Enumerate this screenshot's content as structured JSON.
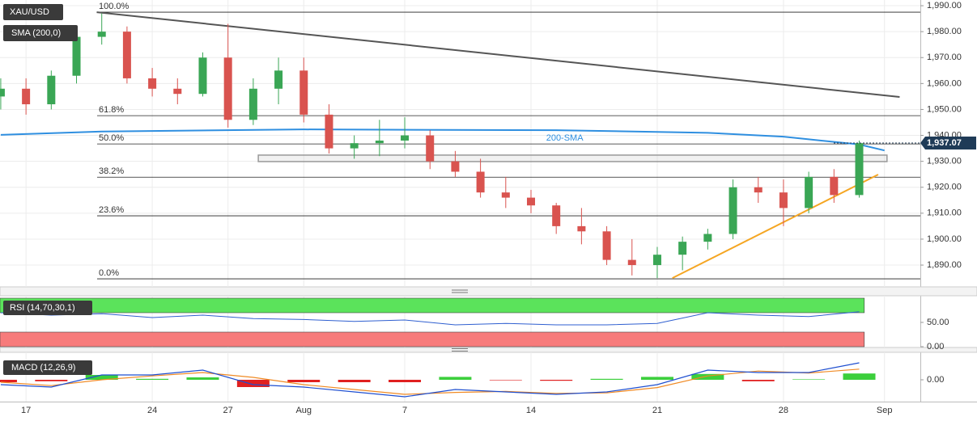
{
  "chart_data": [
    {
      "type": "candlestick",
      "title": "XAU/USD",
      "indicator": "SMA (200,0)",
      "x": [
        -1,
        0,
        1,
        2,
        3,
        4,
        5,
        6,
        7,
        8,
        9,
        10,
        11,
        12,
        13,
        14,
        15,
        16,
        17,
        18,
        19,
        20,
        21,
        22,
        23,
        24,
        25,
        26,
        27,
        28,
        29,
        30,
        31,
        32,
        33
      ],
      "open": [
        1955,
        1958,
        1952,
        1963,
        1978,
        1980,
        1962,
        1958,
        1956,
        1970,
        1946,
        1958,
        1965,
        1948,
        1935,
        1937,
        1938,
        1940,
        1930,
        1926,
        1918,
        1916,
        1913,
        1905,
        1903,
        1892,
        1890,
        1894,
        1899,
        1902,
        1920,
        1918,
        1912,
        1924,
        1917
      ],
      "high": [
        1962,
        1962,
        1965,
        1980,
        1987,
        1982,
        1966,
        1962,
        1972,
        1983,
        1962,
        1970,
        1970,
        1952,
        1940,
        1946,
        1947,
        1942,
        1934,
        1931,
        1924,
        1919,
        1914,
        1912,
        1905,
        1900,
        1897,
        1901,
        1904,
        1923,
        1924,
        1923,
        1926,
        1927,
        1938
      ],
      "low": [
        1950,
        1948,
        1950,
        1960,
        1975,
        1960,
        1955,
        1952,
        1955,
        1943,
        1944,
        1952,
        1945,
        1933,
        1931,
        1932,
        1935,
        1927,
        1924,
        1916,
        1912,
        1910,
        1902,
        1898,
        1890,
        1886,
        1885,
        1888,
        1896,
        1900,
        1914,
        1905,
        1910,
        1914,
        1916
      ],
      "close": [
        1958,
        1952,
        1963,
        1978,
        1980,
        1962,
        1958,
        1956,
        1970,
        1946,
        1958,
        1965,
        1948,
        1935,
        1937,
        1938,
        1940,
        1930,
        1926,
        1918,
        1916,
        1913,
        1905,
        1903,
        1892,
        1890,
        1894,
        1899,
        1902,
        1920,
        1918,
        1912,
        1924,
        1917,
        1937
      ],
      "up_color": "#3aa655",
      "down_color": "#d9534f",
      "xlim": [
        -1.03,
        35.42
      ],
      "ylim": [
        1881.6,
        1992.2
      ],
      "xticks": [
        {
          "value": 0,
          "label": "17"
        },
        {
          "value": 5,
          "label": "24"
        },
        {
          "value": 8,
          "label": "27"
        },
        {
          "value": 11,
          "label": "Aug"
        },
        {
          "value": 15,
          "label": "7"
        },
        {
          "value": 20,
          "label": "14"
        },
        {
          "value": 25,
          "label": "21"
        },
        {
          "value": 30,
          "label": "28"
        },
        {
          "value": 34,
          "label": "Sep"
        }
      ],
      "yticks": [
        {
          "value": 1890,
          "label": "1,890.00"
        },
        {
          "value": 1900,
          "label": "1,900.00"
        },
        {
          "value": 1910,
          "label": "1,910.00"
        },
        {
          "value": 1920,
          "label": "1,920.00"
        },
        {
          "value": 1930,
          "label": "1,930.00"
        },
        {
          "value": 1940,
          "label": "1,940.00"
        },
        {
          "value": 1950,
          "label": "1,950.00"
        },
        {
          "value": 1960,
          "label": "1,960.00"
        },
        {
          "value": 1970,
          "label": "1,970.00"
        },
        {
          "value": 1980,
          "label": "1,980.00"
        },
        {
          "value": 1990,
          "label": "1,990.00"
        }
      ],
      "grid": true,
      "sma": {
        "name": "200-SMA",
        "color": "#2f8fe0",
        "x": [
          -1,
          3,
          11,
          21,
          27,
          30,
          33,
          34
        ],
        "values": [
          1940.2,
          1941.5,
          1942.3,
          1942,
          1941,
          1939.5,
          1936.5,
          1934.2
        ]
      },
      "fib_levels": [
        {
          "value": 1987.5,
          "label": "100.0%"
        },
        {
          "value": 1947.6,
          "label": "61.8%"
        },
        {
          "value": 1936.7,
          "label": "50.0%"
        },
        {
          "value": 1923.9,
          "label": "38.2%"
        },
        {
          "value": 1909,
          "label": "23.6%"
        },
        {
          "value": 1884.7,
          "label": "0.0%"
        }
      ],
      "trendlines": [
        {
          "color": "#555555",
          "x": [
            2.8,
            34.6
          ],
          "values": [
            1987.5,
            1954.8
          ]
        },
        {
          "color": "#f5a623",
          "x": [
            25.6,
            33.75
          ],
          "values": [
            1885,
            1924.9
          ]
        }
      ],
      "zone": {
        "x": [
          9.2,
          34.1
        ],
        "values": [
          1932.4,
          1929.9
        ]
      },
      "last_price": {
        "value": 1937.07,
        "label": "1,937.07"
      }
    },
    {
      "type": "line",
      "title": "RSI (14,70,30,1)",
      "x": [
        -1,
        1,
        3,
        5,
        7,
        9,
        11,
        13,
        15,
        17,
        19,
        21,
        23,
        25,
        27,
        29,
        31,
        33
      ],
      "values": [
        70,
        65,
        68,
        60,
        65,
        58,
        56,
        52,
        55,
        45,
        48,
        45,
        45,
        48,
        70,
        65,
        62,
        72
      ],
      "color": "#2f5fd0",
      "ylim": [
        0,
        100
      ],
      "yticks": [
        {
          "value": 0,
          "label": "0.00"
        },
        {
          "value": 50,
          "label": "50.00"
        }
      ],
      "bands": [
        {
          "range": [
            70,
            100
          ],
          "color": "#5be35b"
        },
        {
          "range": [
            0,
            30
          ],
          "color": "#f77b7b"
        }
      ]
    },
    {
      "type": "macd",
      "title": "MACD (12,26,9)",
      "x": [
        -1,
        1,
        3,
        5,
        7,
        9,
        11,
        13,
        15,
        17,
        19,
        21,
        23,
        25,
        27,
        29,
        31,
        33
      ],
      "macd": {
        "color": "#1f4fd0",
        "values": [
          -1,
          -1.5,
          1,
          1,
          2,
          -1,
          -1.5,
          -2.5,
          -3.5,
          -2,
          -2.5,
          -3,
          -2.5,
          -1,
          2,
          1.5,
          1.5,
          3.5
        ]
      },
      "signal": {
        "color": "#f08a24",
        "values": [
          -0.5,
          -1.2,
          0,
          0.8,
          1.5,
          0.5,
          -1,
          -2,
          -3,
          -2.6,
          -2.4,
          -2.8,
          -2.7,
          -1.6,
          0.8,
          1.8,
          1.4,
          2.2
        ]
      },
      "histogram": {
        "up_color": "#3ccf3c",
        "down_color": "#e02020",
        "values": [
          -0.5,
          -0.3,
          1,
          0.2,
          0.5,
          -1.5,
          -0.5,
          -0.5,
          -0.5,
          0.6,
          -0.1,
          -0.2,
          0.2,
          0.6,
          1.2,
          -0.3,
          0.1,
          1.3
        ]
      },
      "ylim": [
        -4.5,
        5.5
      ],
      "yticks": [
        {
          "value": 0,
          "label": "0.00"
        }
      ]
    }
  ]
}
